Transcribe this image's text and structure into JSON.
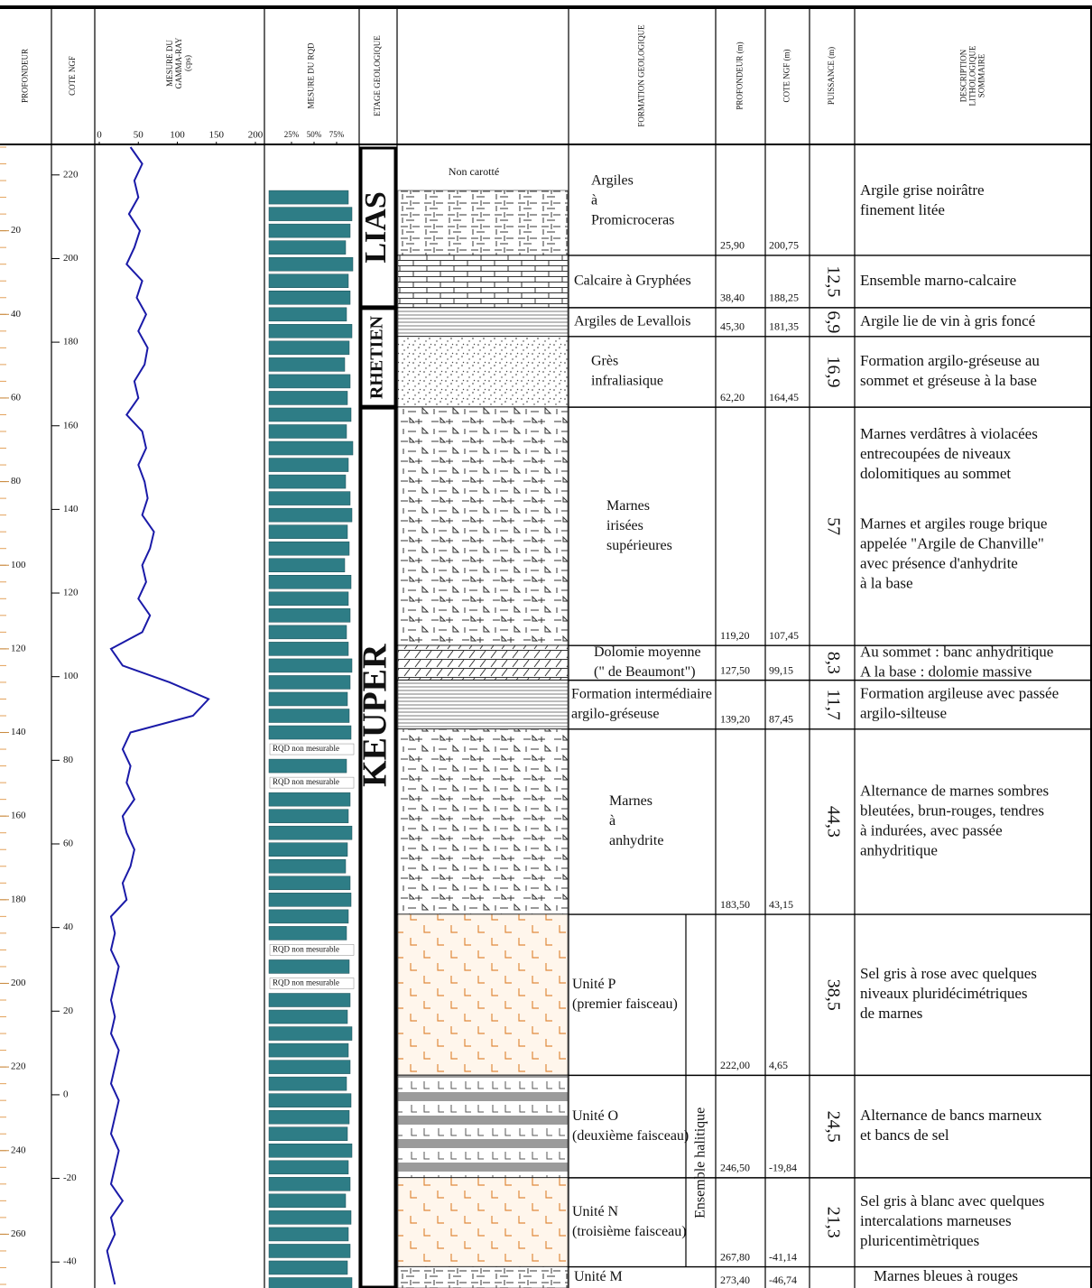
{
  "header": [
    [
      "PROFONDEUR"
    ],
    [
      "COTE NGF"
    ],
    [
      "MESURE DU",
      "GAMMA-RAY",
      "(cps)"
    ],
    [
      "MESURE DU RQD"
    ],
    [
      "ETAGE GEOLOGIQUE"
    ],
    [],
    [
      "FORMATION GEOLOGIQUE"
    ],
    [
      "PROFONDEUR (m)"
    ],
    [
      "COTE NGF (m)"
    ],
    [
      "PUISSANCE (m)"
    ],
    [
      "DESCRIPTION",
      "LITHOLOGIQUE",
      "SOMMAIRE"
    ]
  ],
  "depth_axis": {
    "lim": [
      0,
      272
    ],
    "ticks": [
      20,
      40,
      60,
      80,
      100,
      120,
      140,
      160,
      180,
      200,
      220,
      240,
      260
    ]
  },
  "cote_axis": {
    "lim": [
      226.65,
      -45.35
    ],
    "ticks": [
      220,
      200,
      180,
      160,
      140,
      120,
      100,
      80,
      60,
      40,
      20,
      0,
      -20,
      -40
    ]
  },
  "gamma_axis": {
    "lim": [
      0,
      200
    ],
    "ticks": [
      0,
      50,
      100,
      150,
      200
    ]
  },
  "rqd_axis": {
    "lim": [
      0,
      100
    ],
    "ticks": [
      {
        "value": 25,
        "label": "25%"
      },
      {
        "value": 50,
        "label": "50%"
      },
      {
        "value": 75,
        "label": "75%"
      }
    ]
  },
  "well_log": {
    "depth": [
      0,
      4,
      8,
      12,
      16,
      20,
      24,
      28,
      32,
      36,
      40,
      44,
      48,
      52,
      56,
      60,
      64,
      68,
      72,
      76,
      80,
      84,
      88,
      92,
      96,
      100,
      104,
      108,
      112,
      116,
      120,
      124,
      128,
      132,
      136,
      140,
      144,
      148,
      152,
      156,
      160,
      164,
      168,
      172,
      176,
      180,
      184,
      188,
      192,
      196,
      200,
      204,
      208,
      212,
      216,
      220,
      224,
      228,
      232,
      236,
      240,
      244,
      248,
      252,
      256,
      260,
      264,
      268,
      272
    ],
    "gamma": [
      40,
      55,
      45,
      50,
      38,
      52,
      45,
      35,
      55,
      48,
      60,
      50,
      62,
      58,
      45,
      50,
      35,
      55,
      60,
      50,
      58,
      62,
      55,
      70,
      65,
      55,
      60,
      50,
      65,
      55,
      15,
      30,
      90,
      140,
      120,
      40,
      30,
      40,
      35,
      45,
      30,
      35,
      45,
      40,
      30,
      35,
      15,
      20,
      15,
      25,
      20,
      15,
      20,
      15,
      25,
      20,
      15,
      25,
      20,
      15,
      25,
      20,
      15,
      30,
      15,
      20,
      10,
      15,
      20
    ],
    "gamma_color": "#1a1aa8",
    "rqd": [
      null,
      null,
      null,
      88,
      92,
      90,
      85,
      93,
      88,
      90,
      86,
      92,
      89,
      84,
      90,
      87,
      91,
      86,
      93,
      88,
      85,
      90,
      92,
      87,
      89,
      84,
      91,
      88,
      90,
      86,
      88,
      92,
      90,
      87,
      89,
      91,
      null,
      86,
      null,
      90,
      88,
      92,
      87,
      85,
      90,
      91,
      88,
      86,
      null,
      89,
      null,
      90,
      87,
      92,
      88,
      90,
      86,
      91,
      89,
      87,
      92,
      88,
      90,
      85,
      91,
      88,
      90,
      87,
      92
    ],
    "rqd_color": "#2e7d86",
    "rqd_note": "RQD non mesurable"
  },
  "group": "Ensemble halitique",
  "stages": [
    {
      "name": "LIAS",
      "layers": [
        {
          "note": "Non carotté",
          "name": [
            "Argiles",
            "à",
            "Promicroceras"
          ],
          "bottom_depth": {
            "value": 25.9,
            "label": "25,90"
          },
          "bottom_cote": "200,75",
          "description": [
            [
              "Argile grise noirâtre",
              "finement litée"
            ]
          ]
        },
        {
          "name": [
            "Calcaire à Gryphées"
          ],
          "bottom_depth": {
            "value": 38.4,
            "label": "38,40"
          },
          "bottom_cote": "188,25",
          "thickness": "12,5",
          "description": [
            [
              "Ensemble marno-calcaire"
            ]
          ]
        }
      ]
    },
    {
      "name": "RHETIEN",
      "layers": [
        {
          "name": [
            "Argiles de Levallois"
          ],
          "bottom_depth": {
            "value": 45.3,
            "label": "45,30"
          },
          "bottom_cote": "181,35",
          "thickness": "6,9",
          "description": [
            [
              "Argile lie de vin à gris foncé"
            ]
          ]
        },
        {
          "name": [
            "Grès",
            "infraliasique"
          ],
          "bottom_depth": {
            "value": 62.2,
            "label": "62,20"
          },
          "bottom_cote": "164,45",
          "thickness": "16,9",
          "description": [
            [
              "Formation argilo-gréseuse au",
              "sommet et gréseuse à la base"
            ]
          ]
        }
      ]
    },
    {
      "name": "KEUPER",
      "layers": [
        {
          "name": [
            "Marnes",
            "irisées",
            "supérieures"
          ],
          "bottom_depth": {
            "value": 119.2,
            "label": "119,20"
          },
          "bottom_cote": "107,45",
          "thickness": "57",
          "description": [
            [
              "Marnes verdâtres à violacées",
              "entrecoupées de niveaux",
              "dolomitiques au sommet"
            ],
            [
              "Marnes et argiles rouge brique",
              "appelée \"Argile de Chanville\"",
              "avec présence d'anhydrite",
              "à la base"
            ]
          ]
        },
        {
          "name": [
            "Dolomie moyenne",
            "(\" de Beaumont\")"
          ],
          "bottom_depth": {
            "value": 127.5,
            "label": "127,50"
          },
          "bottom_cote": "99,15",
          "thickness": "8,3",
          "description": [
            [
              "Au sommet : banc anhydritique",
              "A la base : dolomie massive"
            ]
          ]
        },
        {
          "name": [
            "Formation intermédiaire",
            "argilo-gréseuse"
          ],
          "bottom_depth": {
            "value": 139.2,
            "label": "139,20"
          },
          "bottom_cote": "87,45",
          "thickness": "11,7",
          "description": [
            [
              "Formation argileuse avec passée",
              "argilo-silteuse"
            ]
          ]
        },
        {
          "name": [
            "Marnes",
            "à",
            "anhydrite"
          ],
          "bottom_depth": {
            "value": 183.5,
            "label": "183,50"
          },
          "bottom_cote": "43,15",
          "thickness": "44,3",
          "description": [
            [
              "Alternance de marnes sombres",
              "bleutées, brun-rouges, tendres",
              "à indurées, avec passée",
              "anhydritique"
            ]
          ]
        },
        {
          "name": [
            "Unité P",
            "(premier faisceau)"
          ],
          "bottom_depth": {
            "value": 222.0,
            "label": "222,00"
          },
          "bottom_cote": "4,65",
          "thickness": "38,5",
          "description": [
            [
              "Sel gris à rose avec quelques",
              "niveaux pluridécimétriques",
              "de marnes"
            ]
          ]
        },
        {
          "name": [
            "Unité O",
            "(deuxième faisceau)"
          ],
          "bottom_depth": {
            "value": 246.5,
            "label": "246,50"
          },
          "bottom_cote": "-19,84",
          "thickness": "24,5",
          "description": [
            [
              "Alternance de bancs marneux",
              "et bancs de sel"
            ]
          ]
        },
        {
          "name": [
            "Unité N",
            "(troisième faisceau)"
          ],
          "bottom_depth": {
            "value": 267.8,
            "label": "267,80"
          },
          "bottom_cote": "-41,14",
          "thickness": "21,3",
          "description": [
            [
              "Sel gris à blanc avec quelques",
              "intercalations marneuses",
              "pluricentimètriques"
            ]
          ]
        },
        {
          "name": [
            "Unité M"
          ],
          "bottom_depth": {
            "value": 273.4,
            "label": "273,40"
          },
          "bottom_cote": "-46,74",
          "description": [
            [
              "Marnes bleues à rouges"
            ]
          ]
        }
      ]
    }
  ]
}
